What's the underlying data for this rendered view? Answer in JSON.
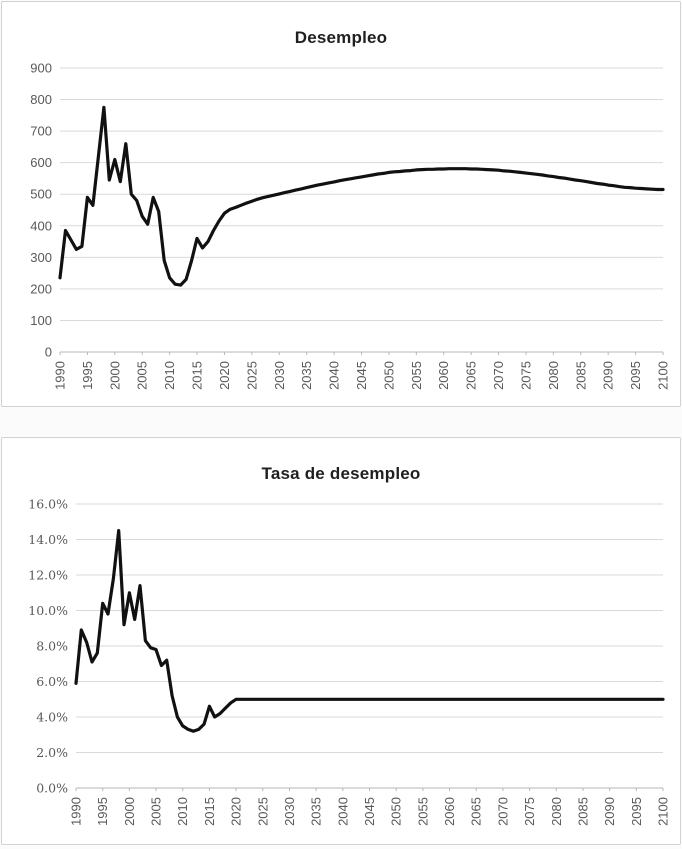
{
  "page": {
    "background": "#fbfbfb"
  },
  "chart_data": [
    {
      "type": "line",
      "title": "Desempleo",
      "xlabel": "",
      "ylabel": "",
      "xlim": [
        1990,
        2100
      ],
      "ylim": [
        0,
        900
      ],
      "grid": true,
      "legend": "none",
      "line_color": "#111111",
      "grid_color": "#d9d9d9",
      "axis_color": "#b7b7b7",
      "tick_text_color": "#595959",
      "ytick_values": [
        900,
        800,
        700,
        600,
        500,
        400,
        300,
        200,
        100,
        0
      ],
      "ytick_labels": [
        "900",
        "800",
        "700",
        "600",
        "500",
        "400",
        "300",
        "200",
        "100",
        "0"
      ],
      "xtick_values": [
        1990,
        1995,
        2000,
        2005,
        2010,
        2015,
        2020,
        2025,
        2030,
        2035,
        2040,
        2045,
        2050,
        2055,
        2060,
        2065,
        2070,
        2075,
        2080,
        2085,
        2090,
        2095,
        2100
      ],
      "xtick_labels": [
        "1990",
        "1995",
        "2000",
        "2005",
        "2010",
        "2015",
        "2020",
        "2025",
        "2030",
        "2035",
        "2040",
        "2045",
        "2050",
        "2055",
        "2060",
        "2065",
        "2070",
        "2075",
        "2080",
        "2085",
        "2090",
        "2095",
        "2100"
      ],
      "series": [
        {
          "name": "Desempleo",
          "x_first": 1990,
          "x_step": 1,
          "values": [
            235,
            385,
            355,
            325,
            335,
            490,
            465,
            620,
            775,
            545,
            610,
            540,
            660,
            500,
            480,
            430,
            405,
            490,
            445,
            290,
            235,
            215,
            212,
            230,
            290,
            360,
            330,
            350,
            385,
            415,
            440,
            452,
            458,
            465,
            472,
            478,
            484,
            489,
            493,
            497,
            501,
            505,
            509,
            513,
            517,
            521,
            525,
            529,
            532,
            536,
            539,
            543,
            546,
            549,
            552,
            555,
            558,
            561,
            564,
            566,
            569,
            571,
            572,
            574,
            575,
            577,
            578,
            579,
            579,
            580,
            580,
            581,
            581,
            581,
            581,
            580,
            580,
            579,
            578,
            577,
            576,
            574,
            573,
            571,
            569,
            567,
            565,
            563,
            561,
            558,
            556,
            553,
            551,
            548,
            545,
            543,
            540,
            537,
            534,
            532,
            529,
            527,
            524,
            522,
            521,
            519,
            518,
            517,
            516,
            515,
            515
          ]
        }
      ]
    },
    {
      "type": "line",
      "title": "Tasa de desempleo",
      "xlabel": "",
      "ylabel": "",
      "xlim": [
        1990,
        2100
      ],
      "ylim": [
        0,
        16
      ],
      "grid": true,
      "legend": "none",
      "line_color": "#111111",
      "grid_color": "#d9d9d9",
      "axis_color": "#b7b7b7",
      "tick_text_color": "#595959",
      "ytick_values": [
        16,
        14,
        12,
        10,
        8,
        6,
        4,
        2,
        0
      ],
      "ytick_labels": [
        "16.0%",
        "14.0%",
        "12.0%",
        "10.0%",
        "8.0%",
        "6.0%",
        "4.0%",
        "2.0%",
        "0.0%"
      ],
      "xtick_values": [
        1990,
        1995,
        2000,
        2005,
        2010,
        2015,
        2020,
        2025,
        2030,
        2035,
        2040,
        2045,
        2050,
        2055,
        2060,
        2065,
        2070,
        2075,
        2080,
        2085,
        2090,
        2095,
        2100
      ],
      "xtick_labels": [
        "1990",
        "1995",
        "2000",
        "2005",
        "2010",
        "2015",
        "2020",
        "2025",
        "2030",
        "2035",
        "2040",
        "2045",
        "2050",
        "2055",
        "2060",
        "2065",
        "2070",
        "2075",
        "2080",
        "2085",
        "2090",
        "2095",
        "2100"
      ],
      "series": [
        {
          "name": "Tasa de desempleo",
          "x_first": 1990,
          "x_step": 1,
          "values": [
            5.9,
            8.9,
            8.2,
            7.1,
            7.6,
            10.4,
            9.8,
            11.8,
            14.5,
            9.2,
            11.0,
            9.5,
            11.4,
            8.3,
            7.9,
            7.8,
            6.9,
            7.2,
            5.2,
            4.0,
            3.5,
            3.3,
            3.2,
            3.3,
            3.6,
            4.6,
            4.0,
            4.2,
            4.5,
            4.8,
            5.0,
            5.0,
            5.0,
            5.0,
            5.0,
            5.0,
            5.0,
            5.0,
            5.0,
            5.0,
            5.0,
            5.0,
            5.0,
            5.0,
            5.0,
            5.0,
            5.0,
            5.0,
            5.0,
            5.0,
            5.0,
            5.0,
            5.0,
            5.0,
            5.0,
            5.0,
            5.0,
            5.0,
            5.0,
            5.0,
            5.0,
            5.0,
            5.0,
            5.0,
            5.0,
            5.0,
            5.0,
            5.0,
            5.0,
            5.0,
            5.0,
            5.0,
            5.0,
            5.0,
            5.0,
            5.0,
            5.0,
            5.0,
            5.0,
            5.0,
            5.0,
            5.0,
            5.0,
            5.0,
            5.0,
            5.0,
            5.0,
            5.0,
            5.0,
            5.0,
            5.0,
            5.0,
            5.0,
            5.0,
            5.0,
            5.0,
            5.0,
            5.0,
            5.0,
            5.0,
            5.0,
            5.0,
            5.0,
            5.0,
            5.0,
            5.0,
            5.0,
            5.0,
            5.0,
            5.0,
            5.0
          ]
        }
      ]
    }
  ]
}
